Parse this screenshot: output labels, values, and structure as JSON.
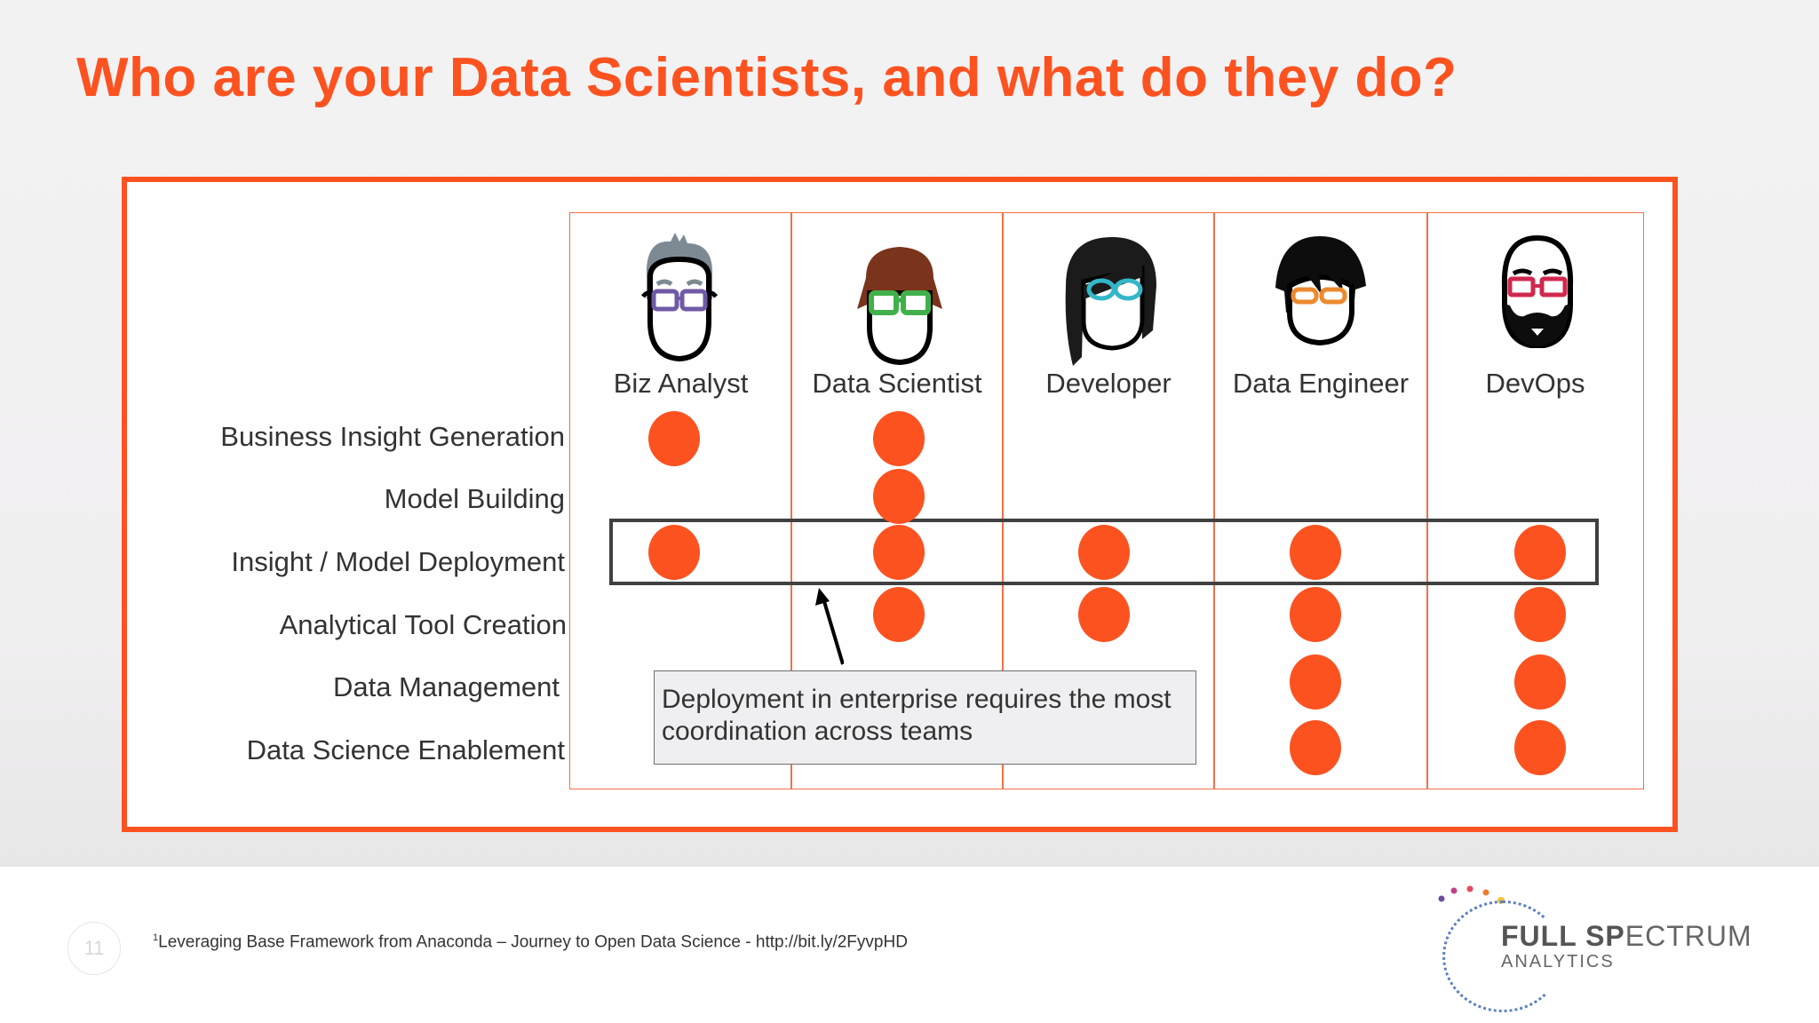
{
  "slide": {
    "title": "Who are your Data Scientists, and what do they do?",
    "page_number": "11"
  },
  "personas": [
    {
      "label": "Biz Analyst",
      "hair": "#7d8a93",
      "glasses": "#6e5aa6"
    },
    {
      "label": "Data Scientist",
      "hair": "#7b341c",
      "glasses": "#41b04a"
    },
    {
      "label": "Developer",
      "hair": "#1b1b1b",
      "glasses": "#33b7c8"
    },
    {
      "label": "Data Engineer",
      "hair": "#0d0d0d",
      "glasses": "#ec8a2f"
    },
    {
      "label": "DevOps",
      "hair": "#0d0d0d",
      "glasses": "#d0294e"
    }
  ],
  "rows": [
    {
      "label": "Business Insight Generation"
    },
    {
      "label": "Model Building"
    },
    {
      "label": "Insight / Model Deployment"
    },
    {
      "label": "Analytical Tool Creation"
    },
    {
      "label": "Data Management"
    },
    {
      "label": "Data Science Enablement"
    }
  ],
  "chart_data": {
    "type": "table",
    "title": "Who are your Data Scientists, and what do they do?",
    "columns": [
      "Biz Analyst",
      "Data Scientist",
      "Developer",
      "Data Engineer",
      "DevOps"
    ],
    "rows": [
      "Business Insight Generation",
      "Model Building",
      "Insight / Model Deployment",
      "Analytical Tool Creation",
      "Data Management",
      "Data Science Enablement"
    ],
    "matrix": [
      [
        1,
        1,
        0,
        0,
        0
      ],
      [
        0,
        1,
        0,
        0,
        0
      ],
      [
        1,
        1,
        1,
        1,
        1
      ],
      [
        0,
        1,
        1,
        1,
        1
      ],
      [
        0,
        0,
        0,
        1,
        1
      ],
      [
        0,
        0,
        0,
        1,
        1
      ]
    ],
    "highlighted_row": "Insight / Model Deployment"
  },
  "callout": {
    "text": "Deployment in enterprise requires the most coordination across teams"
  },
  "footer": {
    "footnote_marker": "1",
    "footnote": "Leveraging Base Framework from Anaconda – Journey to Open Data Science - http://bit.ly/2FyvpHD"
  },
  "logo": {
    "bold": "FULL SP",
    "light": "ECTRUM",
    "sub": "ANALYTICS"
  },
  "colors": {
    "accent": "#fc5220",
    "text": "#333333",
    "grid": "#f0714a",
    "highlight_border": "#404040"
  }
}
